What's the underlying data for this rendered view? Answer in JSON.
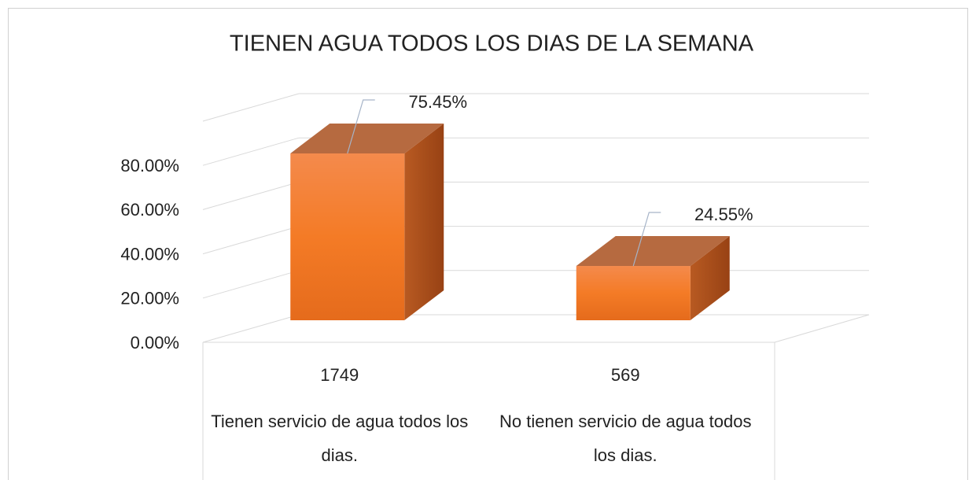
{
  "chart_data": {
    "type": "bar3d",
    "title": "TIENEN AGUA TODOS LOS DIAS DE LA SEMANA",
    "categories": [
      "1749",
      "569"
    ],
    "category_groups": [
      "Tienen servicio de agua todos los dias.",
      "No tienen servicio de agua todos los dias."
    ],
    "values": [
      75.45,
      24.55
    ],
    "value_labels": [
      "75.45%",
      "24.55%"
    ],
    "color": "#f07a2c",
    "ylim": [
      0,
      100
    ],
    "yticks": [
      {
        "value": 0,
        "label": "0.00%"
      },
      {
        "value": 20,
        "label": "20.00%"
      },
      {
        "value": 40,
        "label": "40.00%"
      },
      {
        "value": 60,
        "label": "60.00%"
      },
      {
        "value": 80,
        "label": "80.00%"
      }
    ],
    "grid": true
  }
}
